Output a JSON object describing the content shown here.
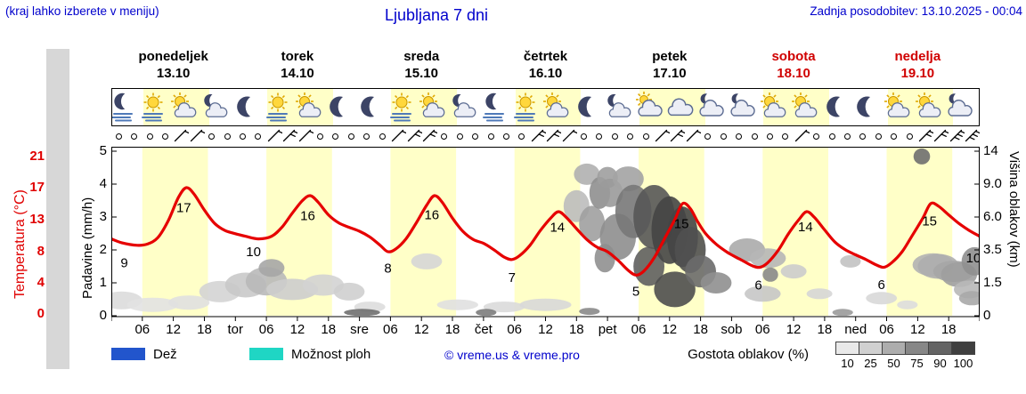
{
  "header": {
    "note_left": "(kraj lahko izberete v meniju)",
    "title": "Ljubljana 7 dni",
    "updated": "Zadnja posodobitev: 13.10.2025 - 00:04"
  },
  "days": [
    {
      "name": "ponedeljek",
      "date": "13.10",
      "color": "#000000"
    },
    {
      "name": "torek",
      "date": "14.10",
      "color": "#000000"
    },
    {
      "name": "sreda",
      "date": "15.10",
      "color": "#000000"
    },
    {
      "name": "četrtek",
      "date": "16.10",
      "color": "#000000"
    },
    {
      "name": "petek",
      "date": "17.10",
      "color": "#000000"
    },
    {
      "name": "sobota",
      "date": "18.10",
      "color": "#d00000"
    },
    {
      "name": "nedelja",
      "date": "19.10",
      "color": "#d00000"
    }
  ],
  "axes": {
    "temperature": {
      "label": "Temperatura (°C)",
      "ticks": [
        "21",
        "17",
        "13",
        "8",
        "4",
        "0"
      ],
      "color": "#e00000"
    },
    "precipitation": {
      "label": "Padavine (mm/h)",
      "ticks": [
        "5",
        "4",
        "3",
        "2",
        "1",
        "0"
      ]
    },
    "cloud_height": {
      "label": "Višina oblakov (km)",
      "ticks": [
        "14",
        "9.0",
        "6.0",
        "3.5",
        "1.5",
        "0"
      ]
    }
  },
  "x_axis": {
    "hour_labels": [
      "06",
      "12",
      "18"
    ],
    "day_boundary_labels": [
      "tor",
      "sre",
      "čet",
      "pet",
      "sob",
      "ned"
    ]
  },
  "legend": {
    "rain": {
      "label": "Dež",
      "color": "#2255cc"
    },
    "showers": {
      "label": "Možnost ploh",
      "color": "#1fd6c4"
    },
    "copyright": "© vreme.us & vreme.pro",
    "cloud_density": {
      "label": "Gostota oblakov (%)",
      "ticks": [
        "10",
        "25",
        "50",
        "75",
        "90",
        "100"
      ],
      "colors": [
        "#e9e9e9",
        "#d0d0d0",
        "#adadad",
        "#878787",
        "#646464",
        "#3f3f3f"
      ]
    }
  },
  "icon_strip": {
    "start_hour": 2,
    "interval_hours": 6,
    "sequence": [
      "moon-fog",
      "sun-fog",
      "sun-cloud",
      "moon-cloud",
      "moon",
      "sun-fog",
      "sun-cloud",
      "moon",
      "moon",
      "sun-fog",
      "sun-cloud",
      "moon-cloud",
      "moon-fog",
      "sun-fog",
      "sun-cloud",
      "moon",
      "moon-cloud",
      "cloud-sun",
      "cloud",
      "cloud-moon",
      "cloud-moon",
      "sun-cloud",
      "sun-cloud",
      "moon",
      "moon",
      "sun-cloud",
      "sun-cloud",
      "cloud-moon"
    ]
  },
  "wind_row": {
    "start_hour": 1.5,
    "interval_hours": 3,
    "barb_counts": [
      0,
      0,
      0,
      0,
      1,
      1,
      0,
      0,
      0,
      0,
      1,
      2,
      1,
      0,
      0,
      0,
      0,
      0,
      1,
      2,
      2,
      0,
      0,
      0,
      0,
      0,
      0,
      2,
      2,
      1,
      0,
      0,
      0,
      0,
      0,
      1,
      2,
      1,
      0,
      0,
      0,
      0,
      0,
      0,
      1,
      0,
      0,
      0,
      0,
      0,
      0,
      0,
      2,
      2,
      3,
      3
    ]
  },
  "chart_data": {
    "type": "line",
    "title": "Ljubljana 7 dni",
    "x_unit": "hours_from_monday_00",
    "x_range": [
      0,
      168
    ],
    "day_shading": {
      "start_hour": 6,
      "end_hour": 18.7,
      "color": "#ffffc8"
    },
    "temperature": {
      "unit": "°C",
      "color": "#e60000",
      "ylim": [
        0,
        21
      ],
      "points": [
        [
          0,
          10
        ],
        [
          2,
          9.4
        ],
        [
          5,
          9
        ],
        [
          7,
          9.2
        ],
        [
          9,
          10.2
        ],
        [
          11,
          12.8
        ],
        [
          13,
          15.8
        ],
        [
          14.5,
          17
        ],
        [
          16,
          16.2
        ],
        [
          18,
          14.2
        ],
        [
          20,
          12.4
        ],
        [
          22,
          11.3
        ],
        [
          24,
          10.8
        ],
        [
          26,
          10.4
        ],
        [
          28.5,
          10
        ],
        [
          31,
          10.4
        ],
        [
          33,
          11.8
        ],
        [
          35,
          13.8
        ],
        [
          37,
          15.4
        ],
        [
          38.5,
          16
        ],
        [
          40,
          15.2
        ],
        [
          42,
          13.6
        ],
        [
          44,
          12.5
        ],
        [
          46,
          11.8
        ],
        [
          48,
          11.2
        ],
        [
          50,
          10.3
        ],
        [
          52,
          9
        ],
        [
          53.5,
          8
        ],
        [
          55,
          8.4
        ],
        [
          57,
          10
        ],
        [
          59,
          12.5
        ],
        [
          61,
          14.8
        ],
        [
          62.5,
          16
        ],
        [
          64,
          15.2
        ],
        [
          66,
          13.2
        ],
        [
          68,
          11.2
        ],
        [
          70,
          9.9
        ],
        [
          72,
          9.3
        ],
        [
          74,
          8.3
        ],
        [
          76,
          7.3
        ],
        [
          77.5,
          7
        ],
        [
          79,
          7.5
        ],
        [
          81,
          9
        ],
        [
          83,
          11.3
        ],
        [
          85,
          13.2
        ],
        [
          86.5,
          14
        ],
        [
          88,
          13.3
        ],
        [
          90,
          11.6
        ],
        [
          92,
          9.9
        ],
        [
          94,
          8.7
        ],
        [
          96,
          8
        ],
        [
          98,
          6.9
        ],
        [
          100,
          5.6
        ],
        [
          101.5,
          5
        ],
        [
          103,
          5.5
        ],
        [
          105,
          7.2
        ],
        [
          107,
          10
        ],
        [
          109,
          13
        ],
        [
          110.5,
          15
        ],
        [
          112,
          14.4
        ],
        [
          113.5,
          12.6
        ],
        [
          115,
          10.8
        ],
        [
          117,
          9.2
        ],
        [
          119,
          8
        ],
        [
          120,
          7.6
        ],
        [
          122,
          6.9
        ],
        [
          124,
          6.2
        ],
        [
          125.5,
          6
        ],
        [
          127,
          6.6
        ],
        [
          129,
          8.2
        ],
        [
          131,
          10.8
        ],
        [
          133,
          13
        ],
        [
          134.5,
          14
        ],
        [
          136,
          13.3
        ],
        [
          138,
          11.4
        ],
        [
          140,
          9.5
        ],
        [
          142,
          8.3
        ],
        [
          144,
          7.6
        ],
        [
          146,
          7
        ],
        [
          148,
          6.3
        ],
        [
          149.5,
          6
        ],
        [
          151,
          6.6
        ],
        [
          153,
          8
        ],
        [
          155,
          10.6
        ],
        [
          157,
          13.2
        ],
        [
          158.5,
          15
        ],
        [
          160,
          14.7
        ],
        [
          162,
          13.6
        ],
        [
          164,
          12.4
        ],
        [
          166,
          11.3
        ],
        [
          168,
          10.4
        ]
      ],
      "extreme_labels": [
        [
          2.5,
          6.6,
          "9"
        ],
        [
          14.0,
          14.5,
          "17"
        ],
        [
          27.5,
          8.0,
          "10"
        ],
        [
          38.0,
          13.5,
          "16"
        ],
        [
          53.5,
          5.9,
          "8"
        ],
        [
          62.0,
          13.6,
          "16"
        ],
        [
          77.5,
          4.7,
          "7"
        ],
        [
          86.3,
          11.8,
          "14"
        ],
        [
          101.5,
          2.9,
          "5"
        ],
        [
          110.3,
          12.4,
          "15"
        ],
        [
          125.2,
          3.7,
          "6"
        ],
        [
          134.3,
          11.9,
          "14"
        ],
        [
          149.0,
          3.8,
          "6"
        ],
        [
          158.3,
          12.8,
          "15"
        ],
        [
          166.8,
          7.2,
          "10"
        ]
      ]
    },
    "daily_min_max": [
      {
        "date": "13.10",
        "min": 9,
        "max": 17
      },
      {
        "date": "14.10",
        "min": 10,
        "max": 16
      },
      {
        "date": "15.10",
        "min": 8,
        "max": 16
      },
      {
        "date": "16.10",
        "min": 7,
        "max": 14
      },
      {
        "date": "17.10",
        "min": 5,
        "max": 15
      },
      {
        "date": "18.10",
        "min": 6,
        "max": 14
      },
      {
        "date": "19.10",
        "min": 6,
        "max": 15
      }
    ],
    "precipitation": {
      "unit": "mm/h",
      "ylim": [
        0,
        5
      ],
      "bars": []
    },
    "clouds": {
      "y_unit": "km",
      "blobs": [
        [
          2,
          0.7,
          4,
          10,
          "#dcdcdc"
        ],
        [
          8,
          0.5,
          5,
          8,
          "#e2e2e2"
        ],
        [
          15,
          0.6,
          4,
          8,
          "#e0e0e0"
        ],
        [
          21,
          1.1,
          4,
          12,
          "#d4d4d4"
        ],
        [
          26,
          1.4,
          4,
          14,
          "#c9c9c9"
        ],
        [
          30,
          1.6,
          4,
          16,
          "#b9b9b9"
        ],
        [
          31,
          2.4,
          2.5,
          10,
          "#a6a6a6"
        ],
        [
          35,
          1.2,
          5,
          12,
          "#cdcdcd"
        ],
        [
          41,
          1.4,
          4,
          12,
          "#d3d3d3"
        ],
        [
          46,
          1.1,
          3,
          10,
          "#cfcfcf"
        ],
        [
          50,
          0.4,
          3,
          6,
          "#dddddd"
        ],
        [
          61,
          2.8,
          3,
          9,
          "#d6d6d6"
        ],
        [
          67,
          0.5,
          4,
          6,
          "#e0e0e0"
        ],
        [
          76,
          0.4,
          4,
          6,
          "#dadada"
        ],
        [
          84,
          0.5,
          5,
          7,
          "#d8d8d8"
        ],
        [
          90,
          7,
          2.5,
          18,
          "#bdbdbd"
        ],
        [
          92,
          10.5,
          2.5,
          12,
          "#b0b0b0"
        ],
        [
          93,
          5.5,
          2.5,
          20,
          "#a0a0a0"
        ],
        [
          94.5,
          8.2,
          2,
          18,
          "#8f8f8f"
        ],
        [
          95.5,
          3,
          2,
          16,
          "#909090"
        ],
        [
          96,
          10,
          2,
          12,
          "#9f9f9f"
        ],
        [
          96.5,
          8.2,
          2.5,
          16,
          "#9a9a9a"
        ],
        [
          98,
          4.5,
          3.5,
          26,
          "#8e8e8e"
        ],
        [
          100,
          9.8,
          3,
          14,
          "#a3a3a3"
        ],
        [
          101,
          6.5,
          3.5,
          30,
          "#787878"
        ],
        [
          104,
          2.5,
          3,
          22,
          "#5f5f5f"
        ],
        [
          105,
          6,
          4,
          36,
          "#565656"
        ],
        [
          108,
          5,
          3.5,
          38,
          "#454545"
        ],
        [
          109,
          1.2,
          4,
          20,
          "#4e4e4e"
        ],
        [
          110.5,
          4.5,
          3,
          34,
          "#454545"
        ],
        [
          112,
          3.5,
          3,
          26,
          "#505050"
        ],
        [
          114,
          2.2,
          3,
          18,
          "#6a6a6a"
        ],
        [
          117,
          1.5,
          3,
          12,
          "#8f8f8f"
        ],
        [
          123,
          3.5,
          3.5,
          13,
          "#ababab"
        ],
        [
          126,
          1,
          3.5,
          9,
          "#c6c6c6"
        ],
        [
          127,
          3,
          3.5,
          11,
          "#b6b6b6"
        ],
        [
          127.5,
          2,
          1.5,
          8,
          "#8a8a8a"
        ],
        [
          132,
          2.2,
          2.5,
          8,
          "#cccccc"
        ],
        [
          137,
          1,
          2.5,
          6,
          "#d6d6d6"
        ],
        [
          143,
          2.8,
          2,
          7,
          "#c2c2c2"
        ],
        [
          149,
          0.8,
          3,
          7,
          "#d8d8d8"
        ],
        [
          154,
          0.5,
          2,
          5,
          "#dddddd"
        ],
        [
          156.8,
          13.2,
          1.6,
          9,
          "#6f6f6f"
        ],
        [
          159,
          2.6,
          4,
          13,
          "#b2b2b2"
        ],
        [
          160,
          2.5,
          4,
          14,
          "#aeaeae"
        ],
        [
          163,
          2.2,
          4,
          12,
          "#a6a6a6"
        ],
        [
          164,
          2,
          3.5,
          14,
          "#9e9e9e"
        ],
        [
          166,
          1.2,
          3,
          10,
          "#b8b8b8"
        ],
        [
          166.5,
          0.8,
          2.5,
          8,
          "#a8a8a8"
        ],
        [
          167,
          2.8,
          2.5,
          16,
          "#8f8f8f"
        ],
        [
          48.5,
          0.15,
          3.5,
          4,
          "#6f6f6f"
        ],
        [
          72.5,
          0.15,
          2,
          4,
          "#7c7c7c"
        ],
        [
          92.5,
          0.2,
          2,
          4,
          "#8a8a8a"
        ],
        [
          141.5,
          0.15,
          2,
          4,
          "#9a9a9a"
        ]
      ]
    }
  }
}
